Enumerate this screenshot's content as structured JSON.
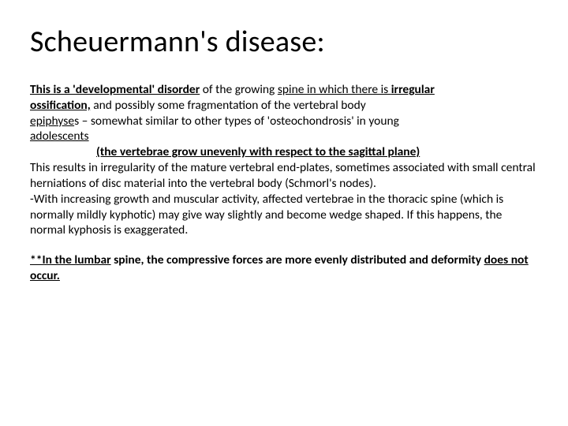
{
  "title": "Scheuermann's disease:",
  "p1_seg1": "This is a 'developmental' disorder",
  "p1_seg2": " of the growing ",
  "p1_seg3": "spine in which there is ",
  "p1_seg4": "irregular",
  "p2_seg1": " ossification,",
  "p2_seg2": " and possibly some fragmentation of the vertebral body",
  "p3_seg1": "epiphyse",
  "p3_seg2": "s – somewhat similar to other types of 'osteochondrosis' in young",
  "p4_seg1": " adolescents",
  "p5_seg1": "(the vertebrae  grow unevenly with respect to the sagittal plane)",
  "p6": "This results in irregularity of the mature vertebral end-plates, sometimes associated with small central herniations of disc material into the vertebral body (Schmorl's nodes).",
  "p7": " -With increasing growth and muscular activity, affected vertebrae in the thoracic spine (which is normally mildly kyphotic) may give way slightly and become wedge shaped. If this happens, the normal kyphosis is exaggerated.",
  "p8_seg1": "**In the lumbar",
  "p8_seg2": " spine, the compressive forces are m",
  "p8_seg3": "ore evenly distributed and deformity ",
  "p8_seg4": "does not occur.",
  "colors": {
    "background": "#ffffff",
    "text": "#000000"
  },
  "typography": {
    "title_fontsize": 38,
    "body_fontsize": 15.5,
    "font_family": "Calibri"
  }
}
